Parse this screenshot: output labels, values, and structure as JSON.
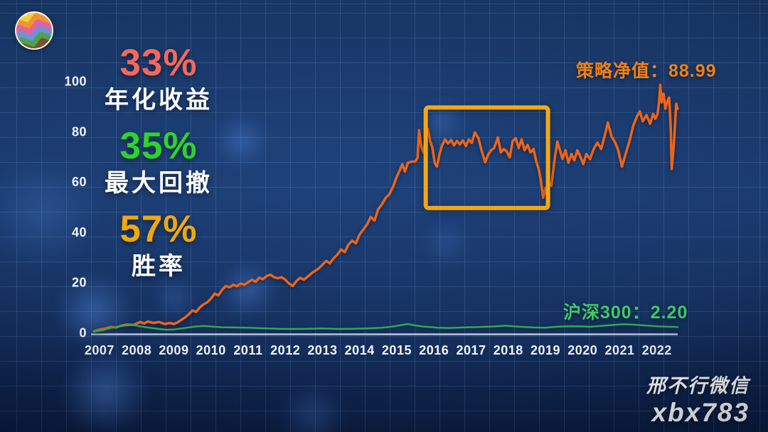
{
  "logo": {
    "name": "colorful-zigzag-coin-logo"
  },
  "stats": [
    {
      "value": "33%",
      "label": "年化收益",
      "color": "#f4685c"
    },
    {
      "value": "35%",
      "label": "最大回撤",
      "color": "#2ed32e"
    },
    {
      "value": "57%",
      "label": "胜率",
      "color": "#f0a80e"
    }
  ],
  "watermark": {
    "line1": "邢不行微信",
    "line2": "xbx783"
  },
  "chart_data": {
    "type": "line",
    "title": "",
    "xlabel": "",
    "ylabel": "",
    "x_ticks": [
      2007,
      2008,
      2009,
      2010,
      2011,
      2012,
      2013,
      2014,
      2015,
      2016,
      2017,
      2018,
      2019,
      2020,
      2021,
      2022
    ],
    "y_ticks": [
      0,
      20,
      40,
      60,
      80,
      100
    ],
    "xlim": [
      2006.81,
      2022.56
    ],
    "ylim": [
      0,
      104
    ],
    "grid": "square background grid, not axis-aligned",
    "axis_color": "#c3cfe2",
    "legend_position": "inline end-value labels",
    "highlight_box": {
      "x1": 2015.78,
      "x2": 2019.07,
      "y1": 49.5,
      "y2": 89.5,
      "color": "#f2a714",
      "meaning": "flat/drawdown period 2016-2019"
    },
    "series": [
      {
        "name": "策略净值",
        "name_en": "strategy",
        "color": "#ee6418",
        "stroke_width": 3.5,
        "final_value": 88.99,
        "end_label": "策略净值：88.99",
        "label_color": "#f08018",
        "points": [
          [
            2006.85,
            0.5
          ],
          [
            2007.0,
            1.2
          ],
          [
            2007.15,
            1.6
          ],
          [
            2007.3,
            2.2
          ],
          [
            2007.45,
            2.0
          ],
          [
            2007.6,
            2.8
          ],
          [
            2007.75,
            3.2
          ],
          [
            2007.9,
            3.0
          ],
          [
            2008.0,
            3.6
          ],
          [
            2008.1,
            4.2
          ],
          [
            2008.2,
            3.6
          ],
          [
            2008.3,
            4.4
          ],
          [
            2008.45,
            3.8
          ],
          [
            2008.6,
            4.2
          ],
          [
            2008.75,
            3.4
          ],
          [
            2008.9,
            3.8
          ],
          [
            2009.0,
            3.4
          ],
          [
            2009.1,
            4.0
          ],
          [
            2009.2,
            5.0
          ],
          [
            2009.3,
            6.0
          ],
          [
            2009.4,
            7.2
          ],
          [
            2009.5,
            8.8
          ],
          [
            2009.6,
            8.2
          ],
          [
            2009.7,
            10.0
          ],
          [
            2009.8,
            11.2
          ],
          [
            2009.9,
            12.0
          ],
          [
            2010.0,
            13.5
          ],
          [
            2010.1,
            15.5
          ],
          [
            2010.2,
            14.8
          ],
          [
            2010.3,
            17.0
          ],
          [
            2010.4,
            18.5
          ],
          [
            2010.5,
            18.0
          ],
          [
            2010.6,
            19.0
          ],
          [
            2010.7,
            18.4
          ],
          [
            2010.8,
            19.5
          ],
          [
            2010.9,
            19.0
          ],
          [
            2011.0,
            20.0
          ],
          [
            2011.1,
            21.0
          ],
          [
            2011.2,
            20.2
          ],
          [
            2011.3,
            21.8
          ],
          [
            2011.4,
            21.2
          ],
          [
            2011.5,
            22.5
          ],
          [
            2011.6,
            23.0
          ],
          [
            2011.7,
            22.0
          ],
          [
            2011.8,
            21.6
          ],
          [
            2011.9,
            22.0
          ],
          [
            2012.0,
            21.0
          ],
          [
            2012.1,
            19.5
          ],
          [
            2012.2,
            18.5
          ],
          [
            2012.3,
            20.5
          ],
          [
            2012.4,
            21.8
          ],
          [
            2012.5,
            21.0
          ],
          [
            2012.6,
            22.2
          ],
          [
            2012.7,
            23.5
          ],
          [
            2012.8,
            24.5
          ],
          [
            2012.9,
            25.5
          ],
          [
            2013.0,
            27.0
          ],
          [
            2013.1,
            28.5
          ],
          [
            2013.2,
            27.5
          ],
          [
            2013.3,
            29.5
          ],
          [
            2013.4,
            31.0
          ],
          [
            2013.5,
            33.0
          ],
          [
            2013.6,
            32.0
          ],
          [
            2013.7,
            35.0
          ],
          [
            2013.8,
            36.5
          ],
          [
            2013.9,
            35.5
          ],
          [
            2014.0,
            39.0
          ],
          [
            2014.1,
            41.0
          ],
          [
            2014.2,
            43.0
          ],
          [
            2014.3,
            46.0
          ],
          [
            2014.4,
            44.5
          ],
          [
            2014.5,
            49.0
          ],
          [
            2014.6,
            51.0
          ],
          [
            2014.7,
            53.5
          ],
          [
            2014.8,
            55.0
          ],
          [
            2014.9,
            58.0
          ],
          [
            2015.0,
            62.0
          ],
          [
            2015.08,
            64.5
          ],
          [
            2015.15,
            67.0
          ],
          [
            2015.22,
            64.0
          ],
          [
            2015.3,
            67.5
          ],
          [
            2015.4,
            68.0
          ],
          [
            2015.5,
            68.0
          ],
          [
            2015.56,
            69.5
          ],
          [
            2015.6,
            80.5
          ],
          [
            2015.66,
            74.0
          ],
          [
            2015.72,
            71.5
          ],
          [
            2015.78,
            77.5
          ],
          [
            2015.84,
            81.0
          ],
          [
            2015.9,
            76.0
          ],
          [
            2015.96,
            73.5
          ],
          [
            2016.02,
            67.5
          ],
          [
            2016.08,
            66.0
          ],
          [
            2016.15,
            71.0
          ],
          [
            2016.22,
            74.5
          ],
          [
            2016.3,
            76.8
          ],
          [
            2016.38,
            75.2
          ],
          [
            2016.46,
            76.6
          ],
          [
            2016.54,
            74.4
          ],
          [
            2016.62,
            76.2
          ],
          [
            2016.7,
            74.8
          ],
          [
            2016.78,
            76.4
          ],
          [
            2016.86,
            74.2
          ],
          [
            2016.94,
            76.8
          ],
          [
            2017.02,
            75.4
          ],
          [
            2017.1,
            79.6
          ],
          [
            2017.2,
            77.2
          ],
          [
            2017.28,
            72.5
          ],
          [
            2017.38,
            67.7
          ],
          [
            2017.46,
            70.8
          ],
          [
            2017.54,
            72.5
          ],
          [
            2017.62,
            73.4
          ],
          [
            2017.72,
            77.6
          ],
          [
            2017.8,
            71.6
          ],
          [
            2017.88,
            73.0
          ],
          [
            2017.96,
            72.0
          ],
          [
            2018.04,
            69.7
          ],
          [
            2018.12,
            76.2
          ],
          [
            2018.2,
            77.3
          ],
          [
            2018.28,
            73.4
          ],
          [
            2018.36,
            76.8
          ],
          [
            2018.44,
            72.5
          ],
          [
            2018.52,
            74.6
          ],
          [
            2018.6,
            71.6
          ],
          [
            2018.68,
            73.0
          ],
          [
            2018.76,
            67.7
          ],
          [
            2018.82,
            65.0
          ],
          [
            2018.88,
            60.3
          ],
          [
            2018.94,
            53.6
          ],
          [
            2019.0,
            57.5
          ],
          [
            2019.04,
            54.7
          ],
          [
            2019.1,
            59.2
          ],
          [
            2019.16,
            58.3
          ],
          [
            2019.24,
            68.0
          ],
          [
            2019.32,
            76.0
          ],
          [
            2019.4,
            72.0
          ],
          [
            2019.46,
            69.0
          ],
          [
            2019.54,
            72.5
          ],
          [
            2019.62,
            67.5
          ],
          [
            2019.7,
            71.0
          ],
          [
            2019.78,
            68.5
          ],
          [
            2019.86,
            72.5
          ],
          [
            2019.94,
            70.0
          ],
          [
            2020.02,
            67.0
          ],
          [
            2020.1,
            71.0
          ],
          [
            2020.2,
            69.0
          ],
          [
            2020.3,
            73.0
          ],
          [
            2020.4,
            75.5
          ],
          [
            2020.5,
            73.0
          ],
          [
            2020.6,
            78.5
          ],
          [
            2020.68,
            83.5
          ],
          [
            2020.78,
            78.0
          ],
          [
            2020.88,
            75.5
          ],
          [
            2020.96,
            72.5
          ],
          [
            2021.06,
            66.0
          ],
          [
            2021.16,
            71.0
          ],
          [
            2021.26,
            76.0
          ],
          [
            2021.36,
            82.0
          ],
          [
            2021.46,
            85.8
          ],
          [
            2021.54,
            88.0
          ],
          [
            2021.62,
            84.0
          ],
          [
            2021.72,
            86.5
          ],
          [
            2021.82,
            83.0
          ],
          [
            2021.9,
            87.0
          ],
          [
            2021.96,
            85.0
          ],
          [
            2022.02,
            87.0
          ],
          [
            2022.06,
            92.0
          ],
          [
            2022.09,
            98.5
          ],
          [
            2022.13,
            91.5
          ],
          [
            2022.18,
            95.0
          ],
          [
            2022.23,
            89.0
          ],
          [
            2022.28,
            92.0
          ],
          [
            2022.33,
            93.5
          ],
          [
            2022.37,
            82.0
          ],
          [
            2022.4,
            65.0
          ],
          [
            2022.45,
            74.0
          ],
          [
            2022.49,
            83.0
          ],
          [
            2022.52,
            91.0
          ],
          [
            2022.56,
            88.99
          ]
        ]
      },
      {
        "name": "沪深300",
        "name_en": "benchmark",
        "color": "#2bab57",
        "stroke_width": 2.5,
        "final_value": 2.2,
        "end_label": "沪深300：2.20",
        "label_color": "#3fca63",
        "points": [
          [
            2006.85,
            0.3
          ],
          [
            2007.1,
            1.0
          ],
          [
            2007.3,
            1.8
          ],
          [
            2007.5,
            2.4
          ],
          [
            2007.7,
            2.8
          ],
          [
            2007.9,
            3.0
          ],
          [
            2008.05,
            2.6
          ],
          [
            2008.2,
            2.2
          ],
          [
            2008.4,
            1.8
          ],
          [
            2008.6,
            1.4
          ],
          [
            2008.8,
            1.1
          ],
          [
            2009.0,
            1.2
          ],
          [
            2009.2,
            1.6
          ],
          [
            2009.4,
            2.0
          ],
          [
            2009.6,
            2.4
          ],
          [
            2009.8,
            2.6
          ],
          [
            2010.0,
            2.4
          ],
          [
            2010.3,
            2.1
          ],
          [
            2010.6,
            2.0
          ],
          [
            2011.0,
            1.9
          ],
          [
            2011.4,
            1.7
          ],
          [
            2011.8,
            1.5
          ],
          [
            2012.2,
            1.4
          ],
          [
            2012.6,
            1.5
          ],
          [
            2013.0,
            1.6
          ],
          [
            2013.4,
            1.4
          ],
          [
            2013.8,
            1.5
          ],
          [
            2014.2,
            1.6
          ],
          [
            2014.6,
            1.9
          ],
          [
            2014.9,
            2.4
          ],
          [
            2015.1,
            2.9
          ],
          [
            2015.3,
            3.4
          ],
          [
            2015.5,
            2.8
          ],
          [
            2015.7,
            2.4
          ],
          [
            2015.9,
            2.2
          ],
          [
            2016.1,
            1.9
          ],
          [
            2016.4,
            1.8
          ],
          [
            2016.8,
            2.0
          ],
          [
            2017.2,
            2.2
          ],
          [
            2017.6,
            2.4
          ],
          [
            2017.95,
            2.7
          ],
          [
            2018.3,
            2.3
          ],
          [
            2018.7,
            2.0
          ],
          [
            2019.0,
            1.9
          ],
          [
            2019.3,
            2.3
          ],
          [
            2019.6,
            2.5
          ],
          [
            2019.9,
            2.5
          ],
          [
            2020.2,
            2.3
          ],
          [
            2020.5,
            2.6
          ],
          [
            2020.8,
            3.0
          ],
          [
            2021.1,
            3.3
          ],
          [
            2021.4,
            3.1
          ],
          [
            2021.7,
            2.8
          ],
          [
            2022.0,
            2.5
          ],
          [
            2022.3,
            2.3
          ],
          [
            2022.56,
            2.2
          ]
        ]
      }
    ]
  }
}
